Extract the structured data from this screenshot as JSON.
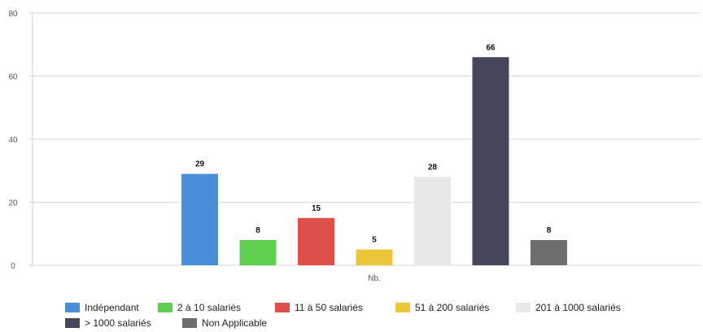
{
  "chart_data": {
    "type": "bar",
    "title": "",
    "xlabel": "",
    "ylabel": "",
    "categories": [
      "Nb."
    ],
    "ylim": [
      0,
      80
    ],
    "yticks": [
      0,
      20,
      40,
      60,
      80
    ],
    "grid": true,
    "legend_position": "bottom",
    "series": [
      {
        "name": "Indépendant",
        "values": [
          29
        ],
        "color": "#4a90d9"
      },
      {
        "name": "2 à 10 salariés",
        "values": [
          8
        ],
        "color": "#5fcf52"
      },
      {
        "name": "11 à 50 salariés",
        "values": [
          15
        ],
        "color": "#e0504a"
      },
      {
        "name": "51 à 200 salariés",
        "values": [
          5
        ],
        "color": "#e8c73a"
      },
      {
        "name": "201 à 1000 salariés",
        "values": [
          28
        ],
        "color": "#e8e8e8"
      },
      {
        "name": "> 1000 salariés",
        "values": [
          66
        ],
        "color": "#464659"
      },
      {
        "name": "Non Applicable",
        "values": [
          8
        ],
        "color": "#6e6e6e"
      }
    ]
  }
}
